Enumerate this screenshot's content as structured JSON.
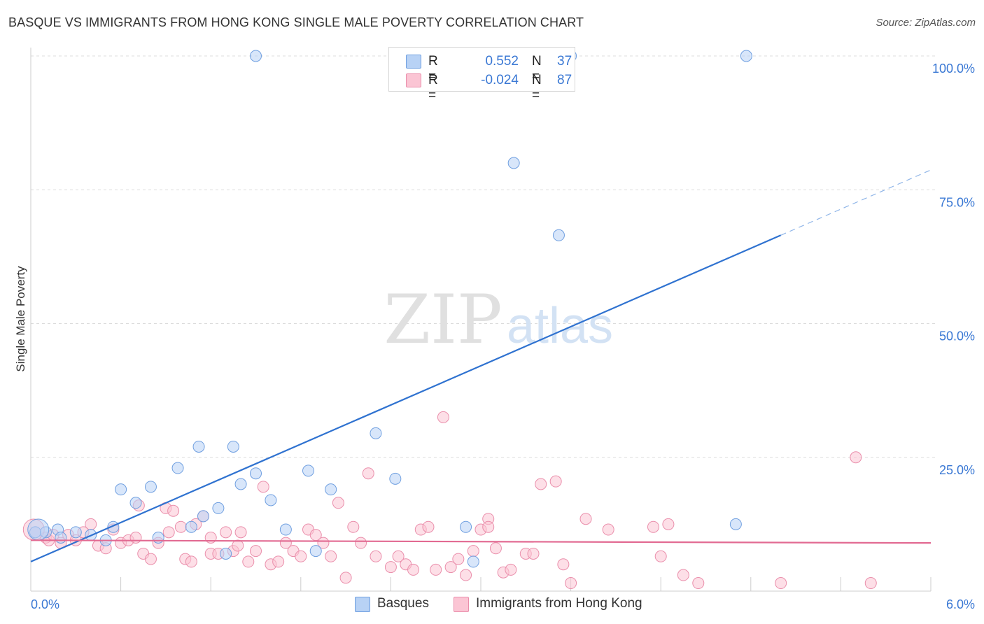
{
  "title": "BASQUE VS IMMIGRANTS FROM HONG KONG SINGLE MALE POVERTY CORRELATION CHART",
  "source": "Source: ZipAtlas.com",
  "watermark": {
    "zip": "ZIP",
    "atlas": "atlas"
  },
  "legend": {
    "r_label": "R =",
    "n_label": "N =",
    "rows": [
      {
        "name": "Basques",
        "r": "0.552",
        "n": "37",
        "fill": "#b8d2f5",
        "stroke": "#6f9fe0"
      },
      {
        "name": "Immigrants from Hong Kong",
        "r": "-0.024",
        "n": "87",
        "fill": "#fbc5d4",
        "stroke": "#ea8eab"
      }
    ]
  },
  "chart_data": {
    "type": "scatter",
    "ylabel": "Single Male Poverty",
    "xlim": [
      0,
      6
    ],
    "ylim": [
      0,
      100
    ],
    "x_tick_labels": [
      {
        "value": 0,
        "label": "0.0%"
      },
      {
        "value": 6,
        "label": "6.0%"
      }
    ],
    "x_minor_ticks": [
      0,
      0.6,
      1.2,
      1.8,
      2.4,
      3.0,
      3.6,
      4.2,
      4.8,
      5.4,
      6.0
    ],
    "y_ticks": [
      {
        "value": 25,
        "label": "25.0%"
      },
      {
        "value": 50,
        "label": "50.0%"
      },
      {
        "value": 75,
        "label": "75.0%"
      },
      {
        "value": 100,
        "label": "100.0%"
      }
    ],
    "series": [
      {
        "name": "Basques",
        "color": "#6f9fe0",
        "fill": "#b8d2f5",
        "trend": {
          "x0": 0,
          "y0": 5.5,
          "x1": 5.0,
          "y1": 66.5,
          "dash_to_x": 6.0,
          "line_color": "#2f72d0"
        },
        "points": [
          [
            0.03,
            11
          ],
          [
            0.1,
            11
          ],
          [
            0.18,
            11.5
          ],
          [
            0.2,
            10
          ],
          [
            0.3,
            11
          ],
          [
            0.4,
            10.5
          ],
          [
            0.5,
            9.5
          ],
          [
            0.55,
            12
          ],
          [
            0.6,
            19
          ],
          [
            0.7,
            16.5
          ],
          [
            0.8,
            19.5
          ],
          [
            0.85,
            10
          ],
          [
            0.98,
            23
          ],
          [
            1.07,
            12
          ],
          [
            1.12,
            27
          ],
          [
            1.15,
            14
          ],
          [
            1.25,
            15.5
          ],
          [
            1.3,
            7
          ],
          [
            1.35,
            27
          ],
          [
            1.4,
            20
          ],
          [
            1.5,
            100
          ],
          [
            1.5,
            22
          ],
          [
            1.6,
            17
          ],
          [
            1.7,
            11.5
          ],
          [
            1.85,
            22.5
          ],
          [
            1.9,
            7.5
          ],
          [
            2.0,
            19
          ],
          [
            2.3,
            29.5
          ],
          [
            2.43,
            21
          ],
          [
            2.9,
            12
          ],
          [
            2.95,
            5.5
          ],
          [
            3.22,
            80
          ],
          [
            3.52,
            66.5
          ],
          [
            3.6,
            100
          ],
          [
            4.7,
            12.5
          ],
          [
            4.77,
            100
          ],
          [
            0.05,
            11.5
          ]
        ]
      },
      {
        "name": "Immigrants from Hong Kong",
        "color": "#ea8eab",
        "fill": "#fbc5d4",
        "trend": {
          "x0": 0,
          "y0": 9.5,
          "x1": 6.0,
          "y1": 9.0,
          "line_color": "#e26a92"
        },
        "points": [
          [
            0.03,
            11
          ],
          [
            0.1,
            10
          ],
          [
            0.12,
            9.5
          ],
          [
            0.15,
            10.5
          ],
          [
            0.2,
            9
          ],
          [
            0.25,
            10.5
          ],
          [
            0.3,
            9.5
          ],
          [
            0.35,
            11
          ],
          [
            0.4,
            12.5
          ],
          [
            0.45,
            8.5
          ],
          [
            0.5,
            8
          ],
          [
            0.55,
            11.5
          ],
          [
            0.6,
            9
          ],
          [
            0.65,
            9.5
          ],
          [
            0.7,
            10
          ],
          [
            0.72,
            16
          ],
          [
            0.75,
            7
          ],
          [
            0.8,
            6
          ],
          [
            0.85,
            9
          ],
          [
            0.9,
            15.5
          ],
          [
            0.92,
            11
          ],
          [
            0.95,
            15
          ],
          [
            1.0,
            12
          ],
          [
            1.03,
            6
          ],
          [
            1.07,
            5.5
          ],
          [
            1.1,
            12.5
          ],
          [
            1.15,
            14
          ],
          [
            1.2,
            7
          ],
          [
            1.25,
            7
          ],
          [
            1.3,
            11
          ],
          [
            1.35,
            7.5
          ],
          [
            1.38,
            8.5
          ],
          [
            1.4,
            11
          ],
          [
            1.45,
            5.5
          ],
          [
            1.5,
            7.5
          ],
          [
            1.55,
            19.5
          ],
          [
            1.6,
            5
          ],
          [
            1.65,
            5.5
          ],
          [
            1.7,
            9
          ],
          [
            1.75,
            7.5
          ],
          [
            1.8,
            6.5
          ],
          [
            1.85,
            11.5
          ],
          [
            1.9,
            10.5
          ],
          [
            1.95,
            9
          ],
          [
            2.0,
            6.5
          ],
          [
            2.05,
            16.5
          ],
          [
            2.1,
            2.5
          ],
          [
            2.15,
            12
          ],
          [
            2.2,
            9
          ],
          [
            2.25,
            22
          ],
          [
            2.3,
            6.5
          ],
          [
            2.4,
            4.5
          ],
          [
            2.45,
            6.5
          ],
          [
            2.5,
            5
          ],
          [
            2.55,
            4
          ],
          [
            2.6,
            11.5
          ],
          [
            2.65,
            12
          ],
          [
            2.7,
            4
          ],
          [
            2.75,
            32.5
          ],
          [
            2.8,
            4.5
          ],
          [
            2.85,
            6
          ],
          [
            2.9,
            3
          ],
          [
            2.95,
            7.5
          ],
          [
            3.0,
            11.5
          ],
          [
            3.05,
            13.5
          ],
          [
            3.1,
            8
          ],
          [
            3.15,
            3.5
          ],
          [
            3.2,
            4
          ],
          [
            3.3,
            7
          ],
          [
            3.35,
            7
          ],
          [
            3.4,
            20
          ],
          [
            3.5,
            20.5
          ],
          [
            3.55,
            5
          ],
          [
            3.6,
            1.5
          ],
          [
            3.7,
            13.5
          ],
          [
            3.85,
            11.5
          ],
          [
            4.15,
            12
          ],
          [
            4.2,
            6.5
          ],
          [
            4.25,
            12.5
          ],
          [
            4.35,
            3
          ],
          [
            4.45,
            1.5
          ],
          [
            5.0,
            1.5
          ],
          [
            5.5,
            25
          ],
          [
            5.6,
            1.5
          ],
          [
            3.05,
            12
          ],
          [
            1.2,
            10
          ],
          [
            0.02,
            11.5
          ]
        ]
      }
    ]
  }
}
